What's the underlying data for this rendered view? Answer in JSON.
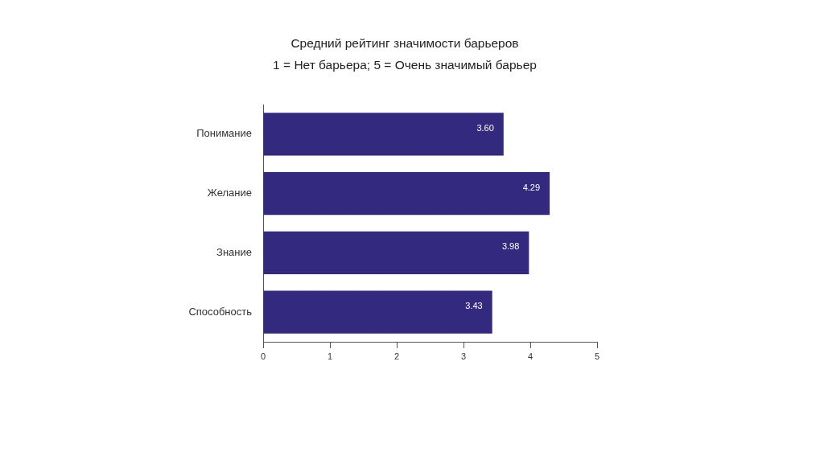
{
  "chart_data": {
    "type": "bar",
    "orientation": "horizontal",
    "title": "Средний рейтинг значимости барьеров",
    "subtitle": "1 = Нет барьера; 5 = Очень значимый барьер",
    "categories": [
      "Понимание",
      "Желание",
      "Знание",
      "Способность"
    ],
    "values": [
      3.6,
      4.29,
      3.98,
      3.43
    ],
    "value_labels": [
      "3.60",
      "4.29",
      "3.98",
      "3.43"
    ],
    "color": "#33297f",
    "xlim": [
      0,
      5
    ],
    "xticks": [
      0,
      1,
      2,
      3,
      4,
      5
    ],
    "grid": false,
    "legend": false
  }
}
